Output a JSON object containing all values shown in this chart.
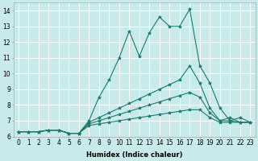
{
  "xlabel": "Humidex (Indice chaleur)",
  "ylabel": "",
  "bg_color": "#c8eaea",
  "line_color": "#1a7a6e",
  "grid_color": "#ffffff",
  "xlim": [
    -0.5,
    23.5
  ],
  "ylim": [
    6,
    14.5
  ],
  "xticks": [
    0,
    1,
    2,
    3,
    4,
    5,
    6,
    7,
    8,
    9,
    10,
    11,
    12,
    13,
    14,
    15,
    16,
    17,
    18,
    19,
    20,
    21,
    22,
    23
  ],
  "yticks": [
    6,
    7,
    8,
    9,
    10,
    11,
    12,
    13,
    14
  ],
  "lines": [
    [
      6.3,
      6.3,
      6.3,
      6.4,
      6.4,
      6.2,
      6.2,
      7.0,
      8.5,
      9.6,
      11.0,
      12.7,
      11.1,
      12.6,
      13.6,
      13.0,
      13.0,
      14.1,
      10.5,
      9.4,
      7.8,
      7.0,
      7.2,
      6.9
    ],
    [
      6.3,
      6.3,
      6.3,
      6.4,
      6.4,
      6.2,
      6.2,
      6.9,
      7.2,
      7.5,
      7.8,
      8.1,
      8.4,
      8.7,
      9.0,
      9.3,
      9.6,
      10.5,
      9.4,
      7.8,
      7.0,
      7.2,
      6.9,
      6.9
    ],
    [
      6.3,
      6.3,
      6.3,
      6.4,
      6.4,
      6.2,
      6.2,
      6.8,
      7.0,
      7.2,
      7.4,
      7.6,
      7.8,
      8.0,
      8.2,
      8.4,
      8.6,
      8.8,
      8.5,
      7.5,
      7.0,
      7.0,
      6.9,
      6.9
    ],
    [
      6.3,
      6.3,
      6.3,
      6.4,
      6.4,
      6.2,
      6.2,
      6.7,
      6.8,
      6.9,
      7.0,
      7.1,
      7.2,
      7.3,
      7.4,
      7.5,
      7.6,
      7.7,
      7.7,
      7.2,
      6.9,
      6.9,
      6.9,
      6.9
    ]
  ],
  "tick_fontsize": 5.5,
  "xlabel_fontsize": 6.0,
  "xlabel_fontweight": "bold"
}
